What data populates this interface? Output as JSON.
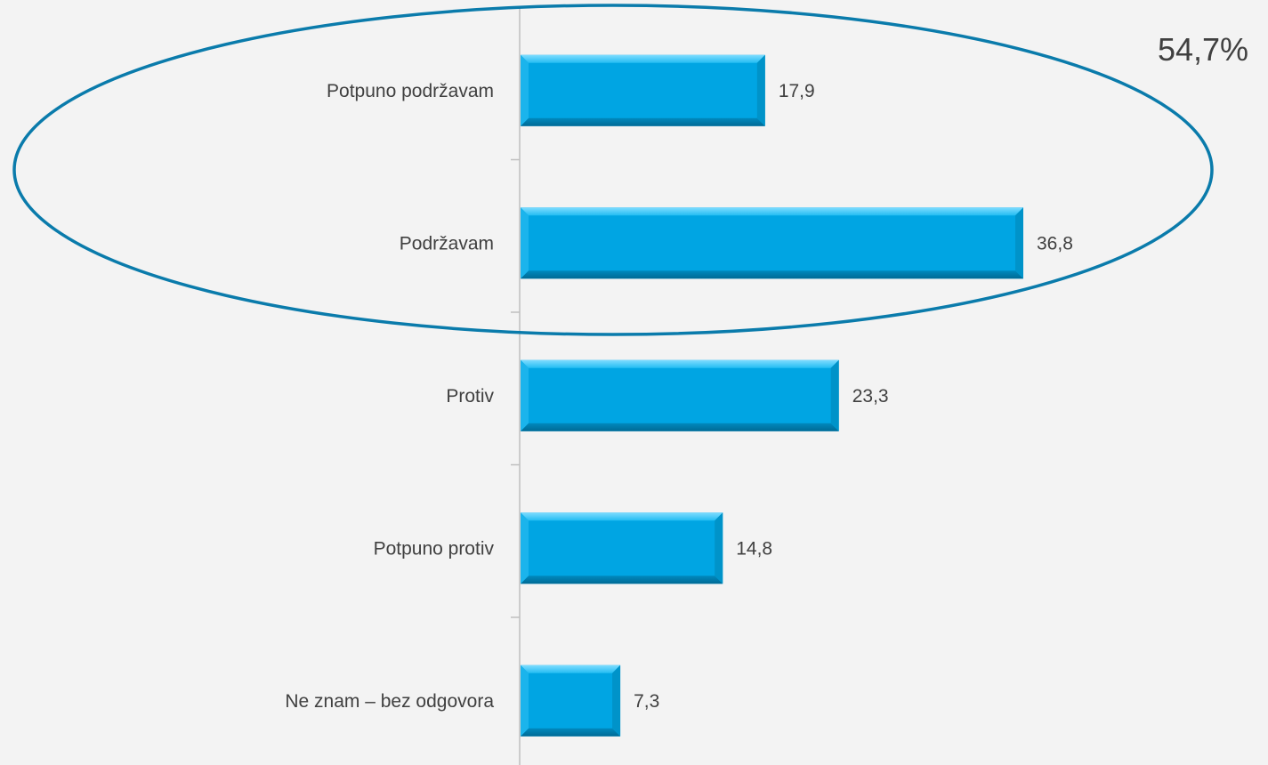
{
  "chart_data": {
    "type": "bar",
    "orientation": "horizontal",
    "categories": [
      "Potpuno podržavam",
      "Podržavam",
      "Protiv",
      "Potpuno protiv",
      "Ne znam – bez odgovora"
    ],
    "values": [
      17.9,
      36.8,
      23.3,
      14.8,
      7.3
    ],
    "value_labels": [
      "17,9",
      "36,8",
      "23,3",
      "14,8",
      "7,3"
    ],
    "title": "",
    "xlabel": "",
    "ylabel": "",
    "xlim": [
      0,
      36.8
    ],
    "grid": false,
    "legend": "none",
    "bar_color": "#00a5e3",
    "highlight": {
      "text": "54,7%",
      "categories": [
        "Potpuno podržavam",
        "Podržavam"
      ],
      "outline_color": "#0a7bab"
    }
  }
}
